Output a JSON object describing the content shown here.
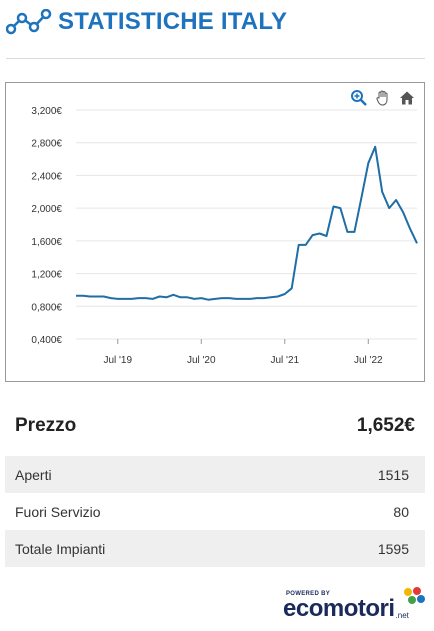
{
  "header": {
    "title": "STATISTICHE ITALY",
    "icon": "line-chart-icon",
    "color": "#1e73be"
  },
  "chart_tools": {
    "icons": [
      "zoom-in-icon",
      "pan-hand-icon",
      "home-icon"
    ]
  },
  "chart_data": {
    "type": "line",
    "title": "",
    "xlabel": "",
    "ylabel": "",
    "yticks": [
      "0,400€",
      "0,800€",
      "1,200€",
      "1,600€",
      "2,000€",
      "2,400€",
      "2,800€",
      "3,200€"
    ],
    "ylim": [
      0.4,
      3.2
    ],
    "xticks": [
      "Jul '19",
      "Jul '20",
      "Jul '21",
      "Jul '22"
    ],
    "grid": true,
    "series": [
      {
        "color": "#1f6ea6",
        "x": [
          "2019-01",
          "2019-02",
          "2019-03",
          "2019-04",
          "2019-05",
          "2019-06",
          "2019-07",
          "2019-08",
          "2019-09",
          "2019-10",
          "2019-11",
          "2019-12",
          "2020-01",
          "2020-02",
          "2020-03",
          "2020-04",
          "2020-05",
          "2020-06",
          "2020-07",
          "2020-08",
          "2020-09",
          "2020-10",
          "2020-11",
          "2020-12",
          "2021-01",
          "2021-02",
          "2021-03",
          "2021-04",
          "2021-05",
          "2021-06",
          "2021-07",
          "2021-08",
          "2021-09",
          "2021-10",
          "2021-11",
          "2021-12",
          "2022-01",
          "2022-02",
          "2022-03",
          "2022-04",
          "2022-05",
          "2022-06",
          "2022-07",
          "2022-08",
          "2022-09",
          "2022-10",
          "2022-11",
          "2022-12",
          "2023-01",
          "2023-02"
        ],
        "values": [
          0.93,
          0.93,
          0.92,
          0.92,
          0.92,
          0.9,
          0.89,
          0.89,
          0.89,
          0.9,
          0.9,
          0.89,
          0.92,
          0.91,
          0.94,
          0.91,
          0.91,
          0.89,
          0.9,
          0.88,
          0.89,
          0.9,
          0.9,
          0.89,
          0.89,
          0.89,
          0.9,
          0.9,
          0.91,
          0.92,
          0.95,
          1.02,
          1.55,
          1.55,
          1.67,
          1.69,
          1.66,
          2.02,
          2.0,
          1.71,
          1.71,
          2.12,
          2.55,
          2.75,
          2.2,
          2.0,
          2.1,
          1.95,
          1.75,
          1.57
        ]
      }
    ]
  },
  "price": {
    "label": "Prezzo",
    "value": "1,652€"
  },
  "stats": [
    {
      "label": "Aperti",
      "value": "1515"
    },
    {
      "label": "Fuori Servizio",
      "value": "80"
    },
    {
      "label": "Totale Impianti",
      "value": "1595"
    }
  ],
  "footer": {
    "powered": "POWERED BY",
    "brand": "ecomotori",
    "brand_suffix": ".net"
  }
}
